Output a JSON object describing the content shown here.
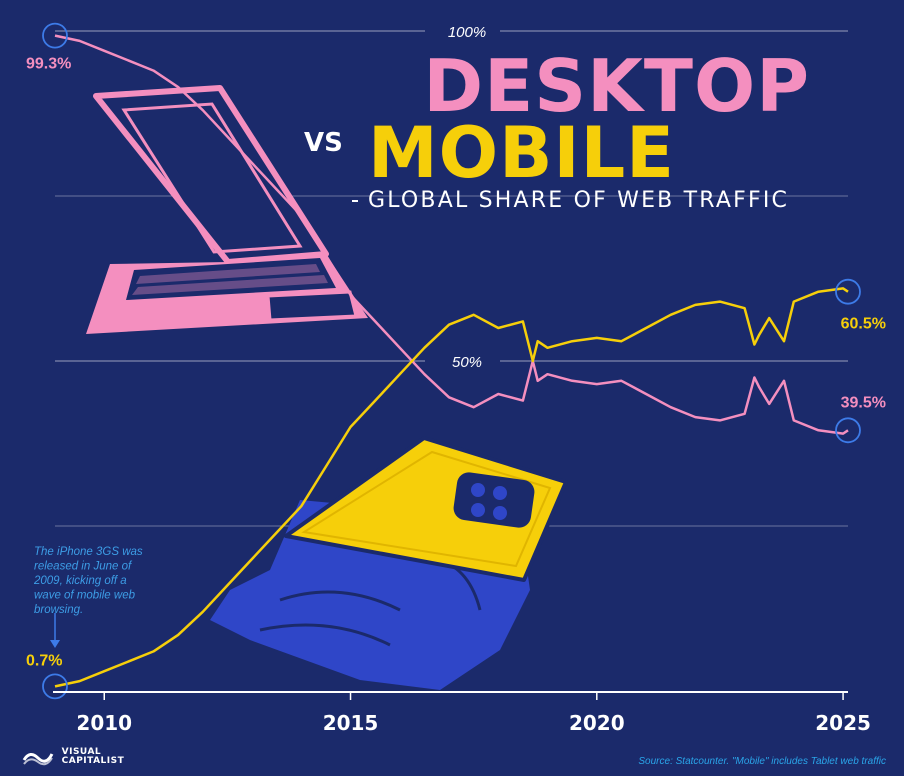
{
  "title": {
    "part1": "DESKTOP",
    "vs": "VS",
    "part2": "MOBILE",
    "subtitle": "GLOBAL SHARE OF WEB TRAFFIC"
  },
  "annotation": "The iPhone 3GS was released in June of 2009, kicking off a wave of mobile web browsing.",
  "source": "Source: Statcounter. \"Mobile\" includes Tablet web traffic",
  "logo": {
    "line1": "VISUAL",
    "line2": "CAPITALIST"
  },
  "colors": {
    "background": "#1b2a6b",
    "desktop": "#f48fbf",
    "mobile": "#f6cf0a",
    "accent": "#3d7be8",
    "hand": "#2f46c8"
  },
  "chart_data": {
    "type": "line",
    "title": "DESKTOP VS MOBILE",
    "subtitle": "GLOBAL SHARE OF WEB TRAFFIC",
    "xlabel": "",
    "ylabel": "",
    "xlim": [
      2009,
      2025.1
    ],
    "ylim": [
      0,
      100
    ],
    "x_ticks": [
      2010,
      2015,
      2020,
      2025
    ],
    "y_tick_labels": [
      {
        "value": 100,
        "label": "100%"
      },
      {
        "value": 50,
        "label": "50%"
      }
    ],
    "gridlines_y": [
      25,
      50,
      75,
      100
    ],
    "series": [
      {
        "name": "Desktop",
        "start_label": "99.3%",
        "end_label": "39.5%",
        "x": [
          2009.0,
          2009.5,
          2010.0,
          2010.5,
          2011.0,
          2011.5,
          2012.0,
          2012.5,
          2013.0,
          2013.5,
          2014.0,
          2014.5,
          2015.0,
          2015.5,
          2016.0,
          2016.5,
          2017.0,
          2017.5,
          2018.0,
          2018.5,
          2018.7,
          2018.8,
          2019.0,
          2019.5,
          2020.0,
          2020.5,
          2021.0,
          2021.5,
          2022.0,
          2022.5,
          2023.0,
          2023.2,
          2023.3,
          2023.5,
          2023.8,
          2024.0,
          2024.5,
          2025.0,
          2025.1
        ],
        "values": [
          99.3,
          98.5,
          97.0,
          95.5,
          94.0,
          91.5,
          88.0,
          84.0,
          80.0,
          76.0,
          72.0,
          66.0,
          60.0,
          56.0,
          52.0,
          48.0,
          44.5,
          43.0,
          45.0,
          44.0,
          50.0,
          47.0,
          48.0,
          47.0,
          46.5,
          47.0,
          45.0,
          43.0,
          41.5,
          41.0,
          42.0,
          47.5,
          46.0,
          43.5,
          47.0,
          41.0,
          39.5,
          39.0,
          39.5
        ]
      },
      {
        "name": "Mobile",
        "start_label": "0.7%",
        "end_label": "60.5%",
        "x": [
          2009.0,
          2009.5,
          2010.0,
          2010.5,
          2011.0,
          2011.5,
          2012.0,
          2012.5,
          2013.0,
          2013.5,
          2014.0,
          2014.5,
          2015.0,
          2015.5,
          2016.0,
          2016.5,
          2017.0,
          2017.5,
          2018.0,
          2018.5,
          2018.7,
          2018.8,
          2019.0,
          2019.5,
          2020.0,
          2020.5,
          2021.0,
          2021.5,
          2022.0,
          2022.5,
          2023.0,
          2023.2,
          2023.3,
          2023.5,
          2023.8,
          2024.0,
          2024.5,
          2025.0,
          2025.1
        ],
        "values": [
          0.7,
          1.5,
          3.0,
          4.5,
          6.0,
          8.5,
          12.0,
          16.0,
          20.0,
          24.0,
          28.0,
          34.0,
          40.0,
          44.0,
          48.0,
          52.0,
          55.5,
          57.0,
          55.0,
          56.0,
          50.0,
          53.0,
          52.0,
          53.0,
          53.5,
          53.0,
          55.0,
          57.0,
          58.5,
          59.0,
          58.0,
          52.5,
          54.0,
          56.5,
          53.0,
          59.0,
          60.5,
          61.0,
          60.5
        ]
      }
    ]
  }
}
